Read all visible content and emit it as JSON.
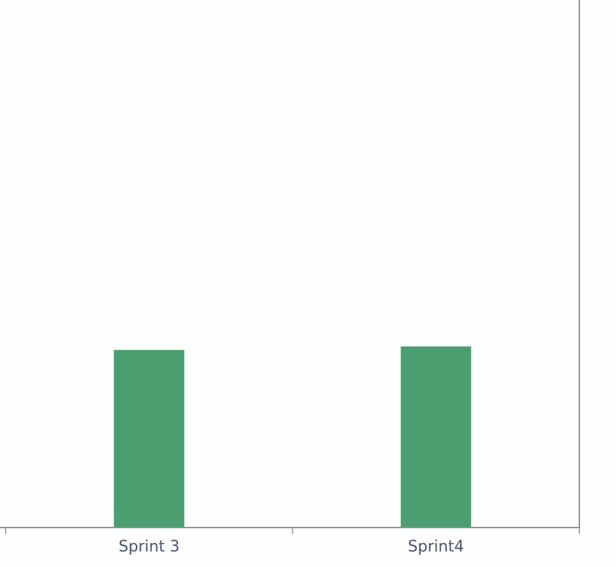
{
  "chart_data": {
    "type": "bar",
    "categories": [
      "Sprint 3",
      "Sprint4"
    ],
    "values": [
      50.5,
      51.5
    ],
    "ylim": [
      0,
      150
    ],
    "grid": false,
    "bar_color": "#4a9e70",
    "axis_color": "#8a909c",
    "tick_label_color": "#4a5470"
  }
}
